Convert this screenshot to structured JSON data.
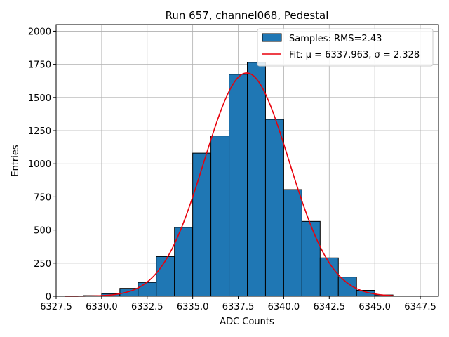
{
  "chart_data": {
    "type": "bar",
    "title": "Run 657, channel068, Pedestal",
    "xlabel": "ADC Counts",
    "ylabel": "Entries",
    "xlim": [
      6327.5,
      6348.5
    ],
    "ylim": [
      0,
      2050
    ],
    "grid": true,
    "xticks": [
      6327.5,
      6330.0,
      6332.5,
      6335.0,
      6337.5,
      6340.0,
      6342.5,
      6345.0,
      6347.5
    ],
    "xtick_labels": [
      "6327.5",
      "6330.0",
      "6332.5",
      "6335.0",
      "6337.5",
      "6340.0",
      "6342.5",
      "6345.0",
      "6347.5"
    ],
    "yticks": [
      0,
      250,
      500,
      750,
      1000,
      1250,
      1500,
      1750,
      2000
    ],
    "ytick_labels": [
      "0",
      "250",
      "500",
      "750",
      "1000",
      "1250",
      "1500",
      "1750",
      "2000"
    ],
    "bin_width": 1,
    "bins": [
      {
        "start": 6328,
        "count": 2
      },
      {
        "start": 6329,
        "count": 5
      },
      {
        "start": 6330,
        "count": 20
      },
      {
        "start": 6331,
        "count": 60
      },
      {
        "start": 6332,
        "count": 105
      },
      {
        "start": 6333,
        "count": 300
      },
      {
        "start": 6334,
        "count": 520
      },
      {
        "start": 6335,
        "count": 1080
      },
      {
        "start": 6336,
        "count": 1210
      },
      {
        "start": 6337,
        "count": 1675
      },
      {
        "start": 6338,
        "count": 1765
      },
      {
        "start": 6339,
        "count": 1335
      },
      {
        "start": 6340,
        "count": 805
      },
      {
        "start": 6341,
        "count": 565
      },
      {
        "start": 6342,
        "count": 290
      },
      {
        "start": 6343,
        "count": 145
      },
      {
        "start": 6344,
        "count": 45
      },
      {
        "start": 6345,
        "count": 10
      }
    ],
    "fit": {
      "mu": 6337.963,
      "sigma": 2.328,
      "amplitude": 1685,
      "x_range": [
        6328,
        6346
      ]
    },
    "legend": {
      "position": "top-right",
      "entries": [
        {
          "label": "Samples: RMS=2.43",
          "kind": "patch"
        },
        {
          "label": "Fit: μ = 6337.963, σ = 2.328",
          "kind": "line"
        }
      ]
    },
    "colors": {
      "bar_fill": "#1f77b4",
      "bar_edge": "#000000",
      "fit_line": "#e8000b",
      "grid": "#b0b0b0"
    }
  }
}
